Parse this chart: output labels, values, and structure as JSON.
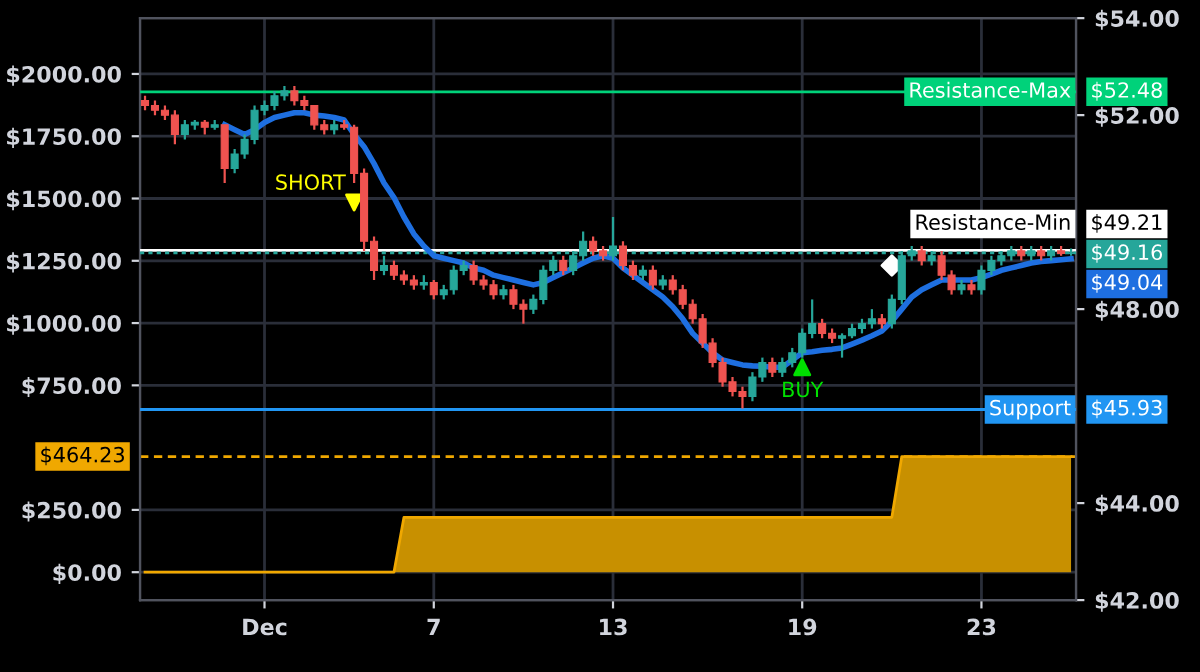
{
  "chart_data": {
    "type": "candlestick",
    "categories": [
      null,
      null,
      null,
      null,
      null,
      null,
      null,
      null,
      null,
      null,
      null,
      null,
      "Dec",
      null,
      null,
      null,
      null,
      null,
      null,
      null,
      null,
      null,
      null,
      null,
      null,
      null,
      null,
      null,
      null,
      "7",
      null,
      null,
      null,
      null,
      null,
      null,
      null,
      null,
      null,
      null,
      null,
      null,
      null,
      null,
      null,
      null,
      null,
      "13",
      null,
      null,
      null,
      null,
      null,
      null,
      null,
      null,
      null,
      null,
      null,
      null,
      null,
      null,
      null,
      null,
      null,
      null,
      "19",
      null,
      null,
      null,
      null,
      null,
      null,
      null,
      null,
      null,
      null,
      null,
      null,
      null,
      null,
      null,
      null,
      null,
      "23",
      null,
      null,
      null,
      null,
      null,
      null,
      null,
      null,
      null
    ],
    "series": [
      {
        "axis": "y2",
        "ohlc": [
          [
            52.3,
            52.4,
            52.1,
            52.2
          ],
          [
            52.2,
            52.3,
            52.0,
            52.1
          ],
          [
            52.1,
            52.2,
            51.9,
            52.0
          ],
          [
            52.0,
            52.1,
            51.4,
            51.6
          ],
          [
            51.6,
            51.9,
            51.5,
            51.8
          ],
          [
            51.8,
            51.9,
            51.7,
            51.85
          ],
          [
            51.85,
            51.9,
            51.6,
            51.75
          ],
          [
            51.75,
            51.9,
            51.7,
            51.8
          ],
          [
            51.8,
            51.8,
            50.6,
            50.9
          ],
          [
            50.9,
            51.3,
            50.8,
            51.2
          ],
          [
            51.2,
            51.6,
            51.1,
            51.5
          ],
          [
            51.5,
            52.2,
            51.4,
            52.1
          ],
          [
            52.1,
            52.3,
            52.0,
            52.2
          ],
          [
            52.2,
            52.5,
            52.1,
            52.4
          ],
          [
            52.4,
            52.6,
            52.3,
            52.5
          ],
          [
            52.5,
            52.6,
            52.2,
            52.3
          ],
          [
            52.3,
            52.4,
            52.1,
            52.2
          ],
          [
            52.2,
            52.2,
            51.7,
            51.8
          ],
          [
            51.8,
            51.9,
            51.6,
            51.7
          ],
          [
            51.7,
            51.9,
            51.6,
            51.8
          ],
          [
            51.8,
            51.9,
            51.7,
            51.75
          ],
          [
            51.75,
            51.8,
            50.6,
            50.8
          ],
          [
            50.8,
            50.9,
            49.2,
            49.4
          ],
          [
            49.4,
            49.5,
            48.6,
            48.8
          ],
          [
            48.8,
            49.1,
            48.7,
            48.9
          ],
          [
            48.9,
            49.0,
            48.6,
            48.7
          ],
          [
            48.7,
            48.8,
            48.5,
            48.6
          ],
          [
            48.6,
            48.7,
            48.4,
            48.5
          ],
          [
            48.5,
            48.7,
            48.4,
            48.55
          ],
          [
            48.55,
            48.6,
            48.2,
            48.3
          ],
          [
            48.3,
            48.5,
            48.2,
            48.4
          ],
          [
            48.4,
            48.9,
            48.3,
            48.8
          ],
          [
            48.8,
            49.0,
            48.7,
            48.9
          ],
          [
            48.9,
            49.0,
            48.5,
            48.6
          ],
          [
            48.6,
            48.7,
            48.4,
            48.5
          ],
          [
            48.5,
            48.6,
            48.2,
            48.3
          ],
          [
            48.3,
            48.5,
            48.2,
            48.4
          ],
          [
            48.4,
            48.5,
            48.0,
            48.1
          ],
          [
            48.1,
            48.2,
            47.7,
            48.0
          ],
          [
            48.0,
            48.3,
            47.9,
            48.2
          ],
          [
            48.2,
            48.9,
            48.1,
            48.8
          ],
          [
            48.8,
            49.1,
            48.7,
            49.0
          ],
          [
            49.0,
            49.1,
            48.7,
            48.8
          ],
          [
            48.8,
            49.2,
            48.7,
            49.1
          ],
          [
            49.1,
            49.6,
            49.0,
            49.4
          ],
          [
            49.4,
            49.5,
            49.1,
            49.2
          ],
          [
            49.2,
            49.3,
            49.0,
            49.1
          ],
          [
            49.1,
            49.9,
            49.0,
            49.3
          ],
          [
            49.3,
            49.4,
            48.8,
            48.9
          ],
          [
            48.9,
            49.0,
            48.6,
            48.7
          ],
          [
            48.7,
            48.9,
            48.6,
            48.8
          ],
          [
            48.8,
            48.9,
            48.4,
            48.5
          ],
          [
            48.5,
            48.7,
            48.4,
            48.6
          ],
          [
            48.6,
            48.7,
            48.3,
            48.4
          ],
          [
            48.4,
            48.5,
            48.0,
            48.1
          ],
          [
            48.1,
            48.2,
            47.7,
            47.8
          ],
          [
            47.8,
            47.9,
            47.2,
            47.3
          ],
          [
            47.3,
            47.4,
            46.8,
            46.9
          ],
          [
            46.9,
            47.0,
            46.4,
            46.5
          ],
          [
            46.5,
            46.6,
            46.2,
            46.3
          ],
          [
            46.3,
            46.4,
            45.95,
            46.2
          ],
          [
            46.2,
            46.7,
            46.1,
            46.6
          ],
          [
            46.6,
            47.0,
            46.5,
            46.9
          ],
          [
            46.9,
            47.0,
            46.6,
            46.7
          ],
          [
            46.7,
            47.0,
            46.6,
            46.9
          ],
          [
            46.9,
            47.2,
            46.8,
            47.1
          ],
          [
            47.1,
            47.6,
            47.0,
            47.5
          ],
          [
            47.5,
            48.2,
            47.4,
            47.7
          ],
          [
            47.7,
            47.8,
            47.4,
            47.5
          ],
          [
            47.5,
            47.6,
            47.3,
            47.4
          ],
          [
            47.4,
            47.5,
            47.0,
            47.45
          ],
          [
            47.45,
            47.7,
            47.4,
            47.6
          ],
          [
            47.6,
            47.8,
            47.5,
            47.7
          ],
          [
            47.7,
            48.0,
            47.6,
            47.8
          ],
          [
            47.8,
            47.9,
            47.6,
            47.7
          ],
          [
            47.7,
            48.3,
            47.6,
            48.2
          ],
          [
            48.2,
            49.2,
            48.1,
            49.1
          ],
          [
            49.1,
            49.3,
            49.0,
            49.2
          ],
          [
            49.2,
            49.3,
            48.9,
            49.0
          ],
          [
            49.0,
            49.2,
            48.9,
            49.1
          ],
          [
            49.1,
            49.2,
            48.6,
            48.7
          ],
          [
            48.7,
            48.8,
            48.3,
            48.4
          ],
          [
            48.4,
            48.6,
            48.3,
            48.5
          ],
          [
            48.5,
            48.6,
            48.3,
            48.4
          ],
          [
            48.4,
            48.9,
            48.3,
            48.8
          ],
          [
            48.8,
            49.1,
            48.7,
            49.0
          ],
          [
            49.0,
            49.2,
            48.9,
            49.1
          ],
          [
            49.1,
            49.3,
            49.0,
            49.2
          ],
          [
            49.2,
            49.3,
            49.0,
            49.1
          ],
          [
            49.1,
            49.3,
            49.0,
            49.2
          ],
          [
            49.2,
            49.3,
            49.0,
            49.1
          ],
          [
            49.1,
            49.3,
            49.0,
            49.2
          ],
          [
            49.2,
            49.3,
            49.1,
            49.15
          ],
          [
            49.15,
            49.25,
            49.1,
            49.16
          ]
        ],
        "colors": [
          "#ef5350",
          "#ef5350",
          "#ef5350",
          "#ef5350",
          "#26a69a",
          "#26a69a",
          "#ef5350",
          "#26a69a",
          "#ef5350",
          "#26a69a",
          "#26a69a",
          "#26a69a",
          "#26a69a",
          "#26a69a",
          "#26a69a",
          "#ef5350",
          "#ef5350",
          "#ef5350",
          "#ef5350",
          "#26a69a",
          "#ef5350",
          "#ef5350",
          "#ef5350",
          "#ef5350",
          "#26a69a",
          "#ef5350",
          "#ef5350",
          "#ef5350",
          "#26a69a",
          "#ef5350",
          "#26a69a",
          "#26a69a",
          "#26a69a",
          "#ef5350",
          "#ef5350",
          "#ef5350",
          "#26a69a",
          "#ef5350",
          "#ef5350",
          "#26a69a",
          "#26a69a",
          "#26a69a",
          "#ef5350",
          "#26a69a",
          "#26a69a",
          "#ef5350",
          "#ef5350",
          "#26a69a",
          "#ef5350",
          "#ef5350",
          "#26a69a",
          "#ef5350",
          "#26a69a",
          "#ef5350",
          "#ef5350",
          "#ef5350",
          "#ef5350",
          "#ef5350",
          "#ef5350",
          "#ef5350",
          "#ef5350",
          "#26a69a",
          "#26a69a",
          "#ef5350",
          "#26a69a",
          "#26a69a",
          "#26a69a",
          "#26a69a",
          "#ef5350",
          "#ef5350",
          "#26a69a",
          "#26a69a",
          "#26a69a",
          "#26a69a",
          "#ef5350",
          "#26a69a",
          "#26a69a",
          "#26a69a",
          "#ef5350",
          "#26a69a",
          "#ef5350",
          "#ef5350",
          "#26a69a",
          "#ef5350",
          "#26a69a",
          "#26a69a",
          "#26a69a",
          "#26a69a",
          "#ef5350",
          "#26a69a",
          "#ef5350",
          "#26a69a",
          "#ef5350",
          "#26a69a"
        ]
      },
      {
        "type": "line",
        "axis": "y2",
        "color": "#1e6fe0",
        "values": [
          null,
          null,
          null,
          null,
          null,
          null,
          null,
          null,
          51.8,
          51.7,
          51.6,
          51.7,
          51.85,
          51.95,
          52.0,
          52.05,
          52.05,
          52.0,
          51.98,
          51.95,
          51.9,
          51.6,
          51.35,
          51.0,
          50.6,
          50.3,
          49.9,
          49.55,
          49.3,
          49.1,
          49.05,
          49.0,
          48.95,
          48.85,
          48.8,
          48.7,
          48.65,
          48.6,
          48.55,
          48.5,
          48.55,
          48.65,
          48.75,
          48.85,
          48.95,
          49.05,
          49.1,
          49.05,
          48.85,
          48.7,
          48.55,
          48.4,
          48.25,
          48.05,
          47.8,
          47.5,
          47.3,
          47.1,
          46.95,
          46.9,
          46.85,
          46.83,
          46.82,
          46.8,
          46.8,
          46.95,
          47.1,
          47.12,
          47.15,
          47.17,
          47.2,
          47.28,
          47.36,
          47.45,
          47.55,
          47.75,
          48.0,
          48.25,
          48.4,
          48.5,
          48.6,
          48.6,
          48.6,
          48.6,
          48.65,
          48.72,
          48.8,
          48.85,
          48.9,
          48.95,
          48.98,
          49.0,
          49.02,
          49.04
        ],
        "value_labels": [
          null,
          null,
          null,
          null,
          null,
          null,
          null,
          null,
          null,
          null,
          null,
          null,
          null,
          null,
          null,
          null,
          null,
          null,
          null,
          null,
          null,
          null,
          null,
          null,
          null,
          null,
          null,
          null,
          null,
          null,
          null,
          null,
          null,
          null,
          null,
          null,
          null,
          null,
          null,
          null,
          null,
          null,
          null,
          null,
          null,
          null,
          null,
          null,
          null,
          null,
          null,
          null,
          null,
          null,
          null,
          null,
          null,
          null,
          null,
          null,
          null,
          null,
          null,
          null,
          null,
          null,
          null,
          null,
          null,
          null,
          null,
          null,
          null,
          null,
          null,
          null,
          null,
          null,
          null,
          null,
          null,
          null,
          null,
          null,
          null,
          null,
          null,
          null,
          null,
          null,
          null,
          null,
          null,
          "$49.04"
        ]
      },
      {
        "type": "area",
        "axis": "y",
        "color": "#c89000",
        "values": [
          0,
          0,
          0,
          0,
          0,
          0,
          0,
          0,
          0,
          0,
          0,
          0,
          0,
          0,
          0,
          0,
          0,
          0,
          0,
          0,
          0,
          0,
          0,
          0,
          0,
          0,
          220,
          220,
          220,
          220,
          220,
          220,
          220,
          220,
          220,
          220,
          220,
          220,
          220,
          220,
          220,
          220,
          220,
          220,
          220,
          220,
          220,
          220,
          220,
          220,
          220,
          220,
          220,
          220,
          220,
          220,
          220,
          220,
          220,
          220,
          220,
          220,
          220,
          220,
          220,
          220,
          220,
          220,
          220,
          220,
          220,
          220,
          220,
          220,
          220,
          220,
          464.23,
          464.23,
          464.23,
          464.23,
          464.23,
          464.23,
          464.23,
          464.23,
          464.23,
          464.23,
          464.23,
          464.23,
          464.23,
          464.23,
          464.23,
          464.23,
          464.23,
          464.23
        ]
      },
      {
        "type": "scatter",
        "axis": "y2",
        "name": "SHORT",
        "color": "#ffff00",
        "values": [
          null,
          null,
          null,
          null,
          null,
          null,
          null,
          null,
          null,
          null,
          null,
          null,
          null,
          null,
          null,
          null,
          null,
          null,
          null,
          null,
          null,
          50.2,
          null,
          null,
          null,
          null,
          null,
          null,
          null,
          null,
          null,
          null,
          null,
          null,
          null,
          null,
          null,
          null,
          null,
          null,
          null,
          null,
          null,
          null,
          null,
          null,
          null,
          null,
          null,
          null,
          null,
          null,
          null,
          null,
          null,
          null,
          null,
          null,
          null,
          null,
          null,
          null,
          null,
          null,
          null,
          null,
          null,
          null,
          null,
          null,
          null,
          null,
          null,
          null,
          null,
          null,
          null,
          null,
          null,
          null,
          null,
          null,
          null,
          null,
          null,
          null,
          null,
          null,
          null,
          null,
          null,
          null,
          null,
          null
        ]
      },
      {
        "type": "scatter",
        "axis": "y2",
        "name": "BUY",
        "color": "#00e000",
        "values": [
          null,
          null,
          null,
          null,
          null,
          null,
          null,
          null,
          null,
          null,
          null,
          null,
          null,
          null,
          null,
          null,
          null,
          null,
          null,
          null,
          null,
          null,
          null,
          null,
          null,
          null,
          null,
          null,
          null,
          null,
          null,
          null,
          null,
          null,
          null,
          null,
          null,
          null,
          null,
          null,
          null,
          null,
          null,
          null,
          null,
          null,
          null,
          null,
          null,
          null,
          null,
          null,
          null,
          null,
          null,
          null,
          null,
          null,
          null,
          null,
          null,
          null,
          null,
          null,
          null,
          null,
          46.8,
          null,
          null,
          null,
          null,
          null,
          null,
          null,
          null,
          null,
          null,
          null,
          null,
          null,
          null,
          null,
          null,
          null,
          null,
          null,
          null,
          null,
          null,
          null,
          null,
          null,
          null,
          null
        ]
      },
      {
        "type": "scatter",
        "axis": "y2",
        "color": "#ffffff",
        "marker": "diamond",
        "values": [
          null,
          null,
          null,
          null,
          null,
          null,
          null,
          null,
          null,
          null,
          null,
          null,
          null,
          null,
          null,
          null,
          null,
          null,
          null,
          null,
          null,
          null,
          null,
          null,
          null,
          null,
          null,
          null,
          null,
          null,
          null,
          null,
          null,
          null,
          null,
          null,
          null,
          null,
          null,
          null,
          null,
          null,
          null,
          null,
          null,
          null,
          null,
          null,
          null,
          null,
          null,
          null,
          null,
          null,
          null,
          null,
          null,
          null,
          null,
          null,
          null,
          null,
          null,
          null,
          null,
          null,
          null,
          null,
          null,
          null,
          null,
          null,
          null,
          null,
          null,
          48.9,
          null,
          null,
          null,
          null,
          null,
          null,
          null,
          null,
          null,
          null,
          null,
          null,
          null,
          null,
          null,
          null,
          null,
          null
        ]
      }
    ],
    "ylim": [
      -112,
      2224
    ],
    "yticks": [
      {
        "value": 0,
        "label": "$0.00"
      },
      {
        "value": 250,
        "label": "$250.00"
      },
      {
        "value": 750,
        "label": "$750.00"
      },
      {
        "value": 1000,
        "label": "$1000.00"
      },
      {
        "value": 1250,
        "label": "$1250.00"
      },
      {
        "value": 1500,
        "label": "$1500.00"
      },
      {
        "value": 1750,
        "label": "$1750.00"
      },
      {
        "value": 2000,
        "label": "$2000.00"
      }
    ],
    "y2lim": [
      42,
      54
    ],
    "y2ticks": [
      {
        "value": 42,
        "label": "$42.00"
      },
      {
        "value": 44,
        "label": "$44.00"
      },
      {
        "value": 48,
        "label": "$48.00"
      },
      {
        "value": 52,
        "label": "$52.00"
      },
      {
        "value": 54,
        "label": "$54.00"
      }
    ],
    "ref_lines": [
      {
        "axis": "y2",
        "value": 52.48,
        "label": "Resistance-Max",
        "color": "#00d27a"
      },
      {
        "axis": "y2",
        "value": 49.21,
        "label": "Resistance-Min",
        "color": "#ffffff"
      },
      {
        "axis": "y2",
        "value": 49.16,
        "color": "#26a69a",
        "line_style": "dotted"
      },
      {
        "axis": "y2",
        "value": 45.93,
        "label": "Support",
        "color": "#2196f3"
      },
      {
        "axis": "y",
        "value": 464.23,
        "color": "#f0a800",
        "line_style": "dashed"
      }
    ],
    "annotations": [
      "$52.48",
      "$49.21",
      "$49.16",
      "$45.93",
      "$464.23"
    ],
    "grid": true
  }
}
